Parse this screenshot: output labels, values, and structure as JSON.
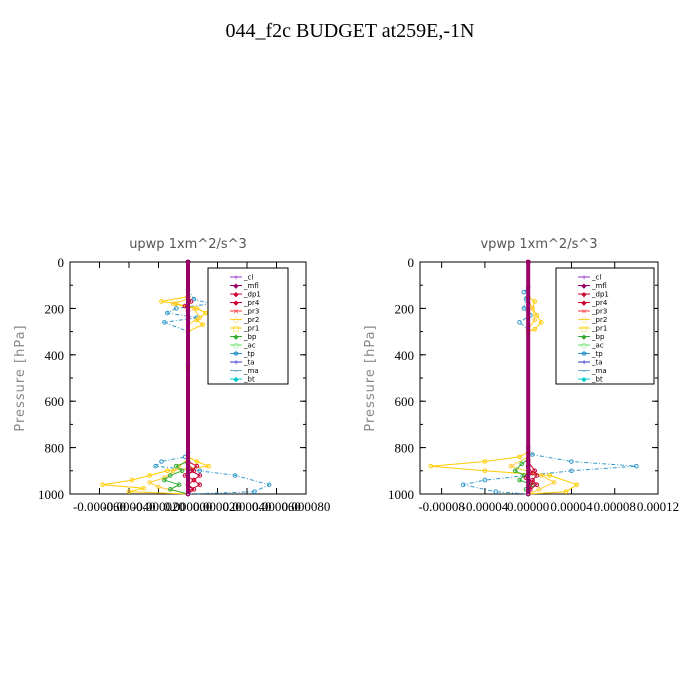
{
  "page_title": "044_f2c  BUDGET at259E,-1N",
  "legend_colors": {
    "_cl": "#9933cc",
    "_mfl": "#990066",
    "_dp1": "#cc0033",
    "_pr4": "#cc0033",
    "_pr3": "#ff3333",
    "_pr2": "#ffcc33",
    "_pr1": "#ffcc00",
    "_bp": "#33aa33",
    "_ac": "#66dd66",
    "_tp": "#3399cc",
    "_ta": "#3333cc",
    "_ma": "#66aacc",
    "_bt": "#00cccc"
  },
  "chart_data": [
    {
      "type": "line",
      "title": "upwp   1xm^2/s^3",
      "ylabel": "Pressure [hPa]",
      "xlabel": "",
      "ylim": [
        1000,
        0
      ],
      "xlim": [
        -8e-05,
        8e-05
      ],
      "yticks": [
        "0",
        "200",
        "400",
        "600",
        "800",
        "1000"
      ],
      "xticks": [
        "-0.000060",
        "-0.000040",
        "-0.000020",
        "0.000000",
        "0.000020",
        "0.000040",
        "0.000060",
        "0.000080"
      ],
      "xtick_values": [
        -6e-05,
        -4e-05,
        -2e-05,
        0,
        2e-05,
        4e-05,
        6e-05,
        8e-05
      ],
      "legend": [
        "_cl",
        "_mfl",
        "_dp1",
        "_pr4",
        "_pr3",
        "_pr2",
        "_pr1",
        "_bp",
        "_ac",
        "_tp",
        "_ta",
        "_ma",
        "_bt"
      ],
      "series": [
        {
          "name": "_tp",
          "points": [
            [
              0,
              0
            ],
            [
              0,
              120
            ],
            [
              4e-06,
              160
            ],
            [
              1.5e-05,
              180
            ],
            [
              -8e-06,
              200
            ],
            [
              -1.4e-05,
              220
            ],
            [
              6e-06,
              240
            ],
            [
              -1.6e-05,
              260
            ],
            [
              0,
              300
            ],
            [
              0,
              440
            ],
            [
              0,
              820
            ],
            [
              -2e-06,
              840
            ],
            [
              -1.8e-05,
              860
            ],
            [
              -2.2e-05,
              880
            ],
            [
              8e-06,
              900
            ],
            [
              3.2e-05,
              920
            ],
            [
              5.5e-05,
              960
            ],
            [
              4.5e-05,
              990
            ],
            [
              0,
              1000
            ]
          ]
        },
        {
          "name": "_pr1",
          "points": [
            [
              0,
              0
            ],
            [
              0,
              150
            ],
            [
              -1.8e-05,
              170
            ],
            [
              -8e-06,
              180
            ],
            [
              6e-06,
              200
            ],
            [
              1.2e-05,
              220
            ],
            [
              6e-06,
              250
            ],
            [
              1e-05,
              270
            ],
            [
              0,
              300
            ],
            [
              0,
              450
            ],
            [
              0,
              840
            ],
            [
              6e-06,
              860
            ],
            [
              1.4e-05,
              880
            ],
            [
              -1.4e-05,
              900
            ],
            [
              -2.6e-05,
              920
            ],
            [
              -3.8e-05,
              940
            ],
            [
              -5.8e-05,
              960
            ],
            [
              -3e-05,
              975
            ],
            [
              -4e-05,
              990
            ],
            [
              0,
              1000
            ]
          ]
        },
        {
          "name": "_pr2",
          "points": [
            [
              0,
              0
            ],
            [
              0,
              160
            ],
            [
              -1e-05,
              180
            ],
            [
              4e-06,
              200
            ],
            [
              8e-06,
              240
            ],
            [
              0,
              270
            ],
            [
              0,
              460
            ],
            [
              0,
              850
            ],
            [
              -6e-06,
              880
            ],
            [
              -1e-05,
              900
            ],
            [
              -1.6e-05,
              930
            ],
            [
              -2.6e-05,
              950
            ],
            [
              -2e-05,
              970
            ],
            [
              0,
              1000
            ]
          ]
        },
        {
          "name": "_bp",
          "points": [
            [
              0,
              0
            ],
            [
              0,
              860
            ],
            [
              -8e-06,
              880
            ],
            [
              -4e-06,
              900
            ],
            [
              -1.2e-05,
              920
            ],
            [
              -1.6e-05,
              940
            ],
            [
              -6e-06,
              960
            ],
            [
              -1.2e-05,
              980
            ],
            [
              0,
              1000
            ]
          ]
        },
        {
          "name": "_pr4",
          "points": [
            [
              0,
              0
            ],
            [
              0,
              150
            ],
            [
              2e-06,
              170
            ],
            [
              -2e-06,
              190
            ],
            [
              0,
              210
            ],
            [
              0,
              860
            ],
            [
              6e-06,
              880
            ],
            [
              2e-06,
              900
            ],
            [
              8e-06,
              920
            ],
            [
              4e-06,
              940
            ],
            [
              8e-06,
              960
            ],
            [
              2e-06,
              980
            ],
            [
              0,
              1000
            ]
          ]
        },
        {
          "name": "_dp1",
          "points": [
            [
              0,
              0
            ],
            [
              0,
              870
            ],
            [
              4e-06,
              900
            ],
            [
              -2e-06,
              920
            ],
            [
              4e-06,
              940
            ],
            [
              0,
              960
            ],
            [
              4e-06,
              980
            ],
            [
              0,
              1000
            ]
          ]
        },
        {
          "name": "_cl",
          "points": [
            [
              0,
              0
            ],
            [
              0,
              1000
            ]
          ]
        },
        {
          "name": "_mfl",
          "points": [
            [
              0,
              0
            ],
            [
              0,
              1000
            ]
          ]
        }
      ]
    },
    {
      "type": "line",
      "title": "vpwp   1xm^2/s^3",
      "ylabel": "Pressure [hPa]",
      "xlabel": "",
      "ylim": [
        1000,
        0
      ],
      "xlim": [
        -0.0001,
        0.00012
      ],
      "yticks": [
        "0",
        "200",
        "400",
        "600",
        "800",
        "1000"
      ],
      "xticks": [
        "-0.00008",
        "-0.00004",
        "0.00000",
        "0.00004",
        "0.00008",
        "0.00012"
      ],
      "xtick_values": [
        -8e-05,
        -4e-05,
        0,
        4e-05,
        8e-05,
        0.00012
      ],
      "legend": [
        "_cl",
        "_mfl",
        "_dp1",
        "_pr4",
        "_pr3",
        "_pr2",
        "_pr1",
        "_bp",
        "_ac",
        "_tp",
        "_ta",
        "_ma",
        "_bt"
      ],
      "series": [
        {
          "name": "_tp",
          "points": [
            [
              0,
              0
            ],
            [
              0,
              110
            ],
            [
              -4e-06,
              130
            ],
            [
              -2e-06,
              160
            ],
            [
              -4e-06,
              200
            ],
            [
              2e-06,
              230
            ],
            [
              -8e-06,
              260
            ],
            [
              0,
              290
            ],
            [
              0,
              800
            ],
            [
              4e-06,
              830
            ],
            [
              4e-05,
              860
            ],
            [
              0.0001,
              880
            ],
            [
              4e-05,
              900
            ],
            [
              0,
              920
            ],
            [
              -4e-05,
              940
            ],
            [
              -6e-05,
              960
            ],
            [
              -3e-05,
              990
            ],
            [
              0,
              1000
            ]
          ]
        },
        {
          "name": "_pr1",
          "points": [
            [
              0,
              0
            ],
            [
              0,
              150
            ],
            [
              6e-06,
              170
            ],
            [
              4e-06,
              200
            ],
            [
              8e-06,
              230
            ],
            [
              1.2e-05,
              260
            ],
            [
              6e-06,
              290
            ],
            [
              0,
              300
            ],
            [
              0,
              820
            ],
            [
              -8e-06,
              840
            ],
            [
              -4e-05,
              860
            ],
            [
              -9e-05,
              880
            ],
            [
              -4e-05,
              900
            ],
            [
              2e-05,
              920
            ],
            [
              4.5e-05,
              960
            ],
            [
              3.5e-05,
              990
            ],
            [
              0,
              1000
            ]
          ]
        },
        {
          "name": "_pr2",
          "points": [
            [
              0,
              0
            ],
            [
              0,
              160
            ],
            [
              4e-06,
              200
            ],
            [
              6e-06,
              250
            ],
            [
              0,
              290
            ],
            [
              0,
              840
            ],
            [
              -1.6e-05,
              880
            ],
            [
              1.2e-05,
              920
            ],
            [
              2.4e-05,
              950
            ],
            [
              1e-05,
              980
            ],
            [
              0,
              1000
            ]
          ]
        },
        {
          "name": "_bp",
          "points": [
            [
              0,
              0
            ],
            [
              0,
              850
            ],
            [
              -6e-06,
              870
            ],
            [
              -1.2e-05,
              900
            ],
            [
              -4e-06,
              920
            ],
            [
              -8e-06,
              940
            ],
            [
              4e-06,
              960
            ],
            [
              -2e-06,
              980
            ],
            [
              0,
              1000
            ]
          ]
        },
        {
          "name": "_pr4",
          "points": [
            [
              0,
              0
            ],
            [
              0,
              860
            ],
            [
              6e-06,
              900
            ],
            [
              8e-06,
              920
            ],
            [
              4e-06,
              940
            ],
            [
              8e-06,
              960
            ],
            [
              2e-06,
              980
            ],
            [
              0,
              1000
            ]
          ]
        },
        {
          "name": "_dp1",
          "points": [
            [
              0,
              0
            ],
            [
              0,
              880
            ],
            [
              4e-06,
              910
            ],
            [
              -2e-06,
              930
            ],
            [
              4e-06,
              950
            ],
            [
              0,
              1000
            ]
          ]
        },
        {
          "name": "_cl",
          "points": [
            [
              0,
              0
            ],
            [
              0,
              1000
            ]
          ]
        },
        {
          "name": "_mfl",
          "points": [
            [
              0,
              0
            ],
            [
              0,
              1000
            ]
          ]
        }
      ]
    }
  ]
}
